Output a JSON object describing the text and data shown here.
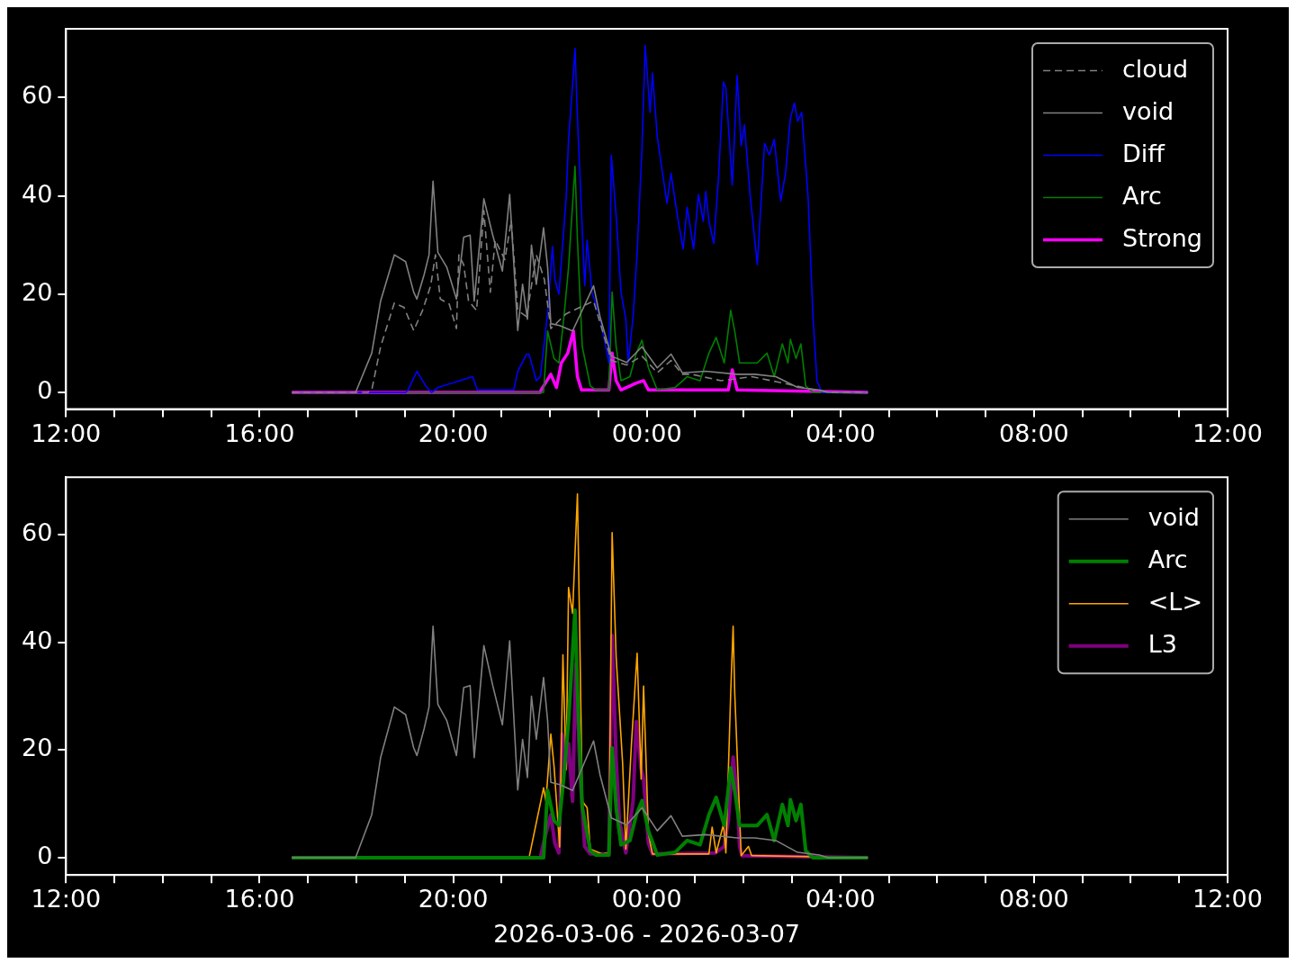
{
  "chart_data": [
    {
      "type": "line",
      "xlim": [
        "2026-03-06T12:00",
        "2026-03-07T12:00"
      ],
      "ylim": [
        -3.4,
        74
      ],
      "yticks": [
        0,
        20,
        40,
        60
      ],
      "legend": "top right",
      "xticks": [
        {
          "value": "2026-03-06T12:00",
          "label": "12:00"
        },
        {
          "value": "2026-03-06T13:00",
          "label": null
        },
        {
          "value": "2026-03-06T14:00",
          "label": null
        },
        {
          "value": "2026-03-06T15:00",
          "label": null
        },
        {
          "value": "2026-03-06T16:00",
          "label": "16:00"
        },
        {
          "value": "2026-03-06T17:00",
          "label": null
        },
        {
          "value": "2026-03-06T18:00",
          "label": null
        },
        {
          "value": "2026-03-06T19:00",
          "label": null
        },
        {
          "value": "2026-03-06T20:00",
          "label": "20:00"
        },
        {
          "value": "2026-03-06T21:00",
          "label": null
        },
        {
          "value": "2026-03-06T22:00",
          "label": null
        },
        {
          "value": "2026-03-06T23:00",
          "label": null
        },
        {
          "value": "2026-03-07T00:00",
          "label": "00:00"
        },
        {
          "value": "2026-03-07T01:00",
          "label": null
        },
        {
          "value": "2026-03-07T02:00",
          "label": null
        },
        {
          "value": "2026-03-07T03:00",
          "label": null
        },
        {
          "value": "2026-03-07T04:00",
          "label": "04:00"
        },
        {
          "value": "2026-03-07T05:00",
          "label": null
        },
        {
          "value": "2026-03-07T06:00",
          "label": null
        },
        {
          "value": "2026-03-07T07:00",
          "label": null
        },
        {
          "value": "2026-03-07T08:00",
          "label": "08:00"
        },
        {
          "value": "2026-03-07T09:00",
          "label": null
        },
        {
          "value": "2026-03-07T10:00",
          "label": null
        },
        {
          "value": "2026-03-07T11:00",
          "label": null
        },
        {
          "value": "2026-03-07T12:00",
          "label": "12:00"
        }
      ],
      "series": [
        {
          "name": "cloud",
          "color": "#808080",
          "line_style": "dashed",
          "x": [
            "2026-03-06T16:40",
            "2026-03-06T18:14",
            "2026-03-06T18:19",
            "2026-03-06T18:30",
            "2026-03-06T18:47",
            "2026-03-06T18:59",
            "2026-03-06T19:11",
            "2026-03-06T19:22",
            "2026-03-06T19:32",
            "2026-03-06T19:38",
            "2026-03-06T19:44",
            "2026-03-06T19:55",
            "2026-03-06T20:04",
            "2026-03-06T20:07",
            "2026-03-06T20:13",
            "2026-03-06T20:19",
            "2026-03-06T20:29",
            "2026-03-06T20:38",
            "2026-03-06T20:46",
            "2026-03-06T20:52",
            "2026-03-06T21:04",
            "2026-03-06T21:12",
            "2026-03-06T21:20",
            "2026-03-06T21:31",
            "2026-03-06T21:43",
            "2026-03-06T21:53",
            "2026-03-06T22:01",
            "2026-03-06T22:20",
            "2026-03-06T22:54",
            "2026-03-06T23:16",
            "2026-03-06T23:35",
            "2026-03-06T23:54",
            "2026-03-07T00:13",
            "2026-03-07T00:30",
            "2026-03-07T00:44",
            "2026-03-07T00:55",
            "2026-03-07T01:32",
            "2026-03-07T02:10",
            "2026-03-07T02:40",
            "2026-03-07T03:26",
            "2026-03-07T03:45",
            "2026-03-07T04:34"
          ],
          "values": [
            0,
            0,
            0.5,
            9.3,
            18.2,
            17.3,
            12.6,
            16.7,
            21.7,
            28,
            19,
            18,
            13,
            28,
            26,
            18.6,
            16.7,
            37,
            20.4,
            31,
            27,
            35,
            16.7,
            15.4,
            28,
            23,
            13,
            16,
            18.6,
            6.5,
            5.6,
            7.4,
            4,
            6.5,
            3.7,
            3.7,
            2.4,
            3.2,
            2.2,
            0.6,
            0,
            0
          ]
        },
        {
          "name": "void",
          "color": "#808080",
          "x": [
            "2026-03-06T16:40",
            "2026-03-06T17:59",
            "2026-03-06T18:19",
            "2026-03-06T18:30",
            "2026-03-06T18:47",
            "2026-03-06T19:01",
            "2026-03-06T19:11",
            "2026-03-06T19:15",
            "2026-03-06T19:24",
            "2026-03-06T19:30",
            "2026-03-06T19:35",
            "2026-03-06T19:41",
            "2026-03-06T19:52",
            "2026-03-06T20:04",
            "2026-03-06T20:13",
            "2026-03-06T20:21",
            "2026-03-06T20:26",
            "2026-03-06T20:38",
            "2026-03-06T20:49",
            "2026-03-06T21:01",
            "2026-03-06T21:10",
            "2026-03-06T21:20",
            "2026-03-06T21:26",
            "2026-03-06T21:32",
            "2026-03-06T21:37",
            "2026-03-06T21:43",
            "2026-03-06T21:52",
            "2026-03-06T21:57",
            "2026-03-06T22:01",
            "2026-03-06T22:12",
            "2026-03-06T22:28",
            "2026-03-06T22:54",
            "2026-03-06T23:02",
            "2026-03-06T23:16",
            "2026-03-06T23:35",
            "2026-03-06T23:54",
            "2026-03-07T00:13",
            "2026-03-07T00:30",
            "2026-03-07T00:44",
            "2026-03-07T01:13",
            "2026-03-07T01:52",
            "2026-03-07T02:14",
            "2026-03-07T02:40",
            "2026-03-07T03:07",
            "2026-03-07T03:34",
            "2026-03-07T03:45",
            "2026-03-07T04:34"
          ],
          "values": [
            0,
            0,
            8,
            18.6,
            28,
            26.6,
            20.4,
            19,
            24,
            28,
            43,
            28.5,
            25.5,
            19,
            31.6,
            32,
            18.6,
            39.4,
            32,
            24.7,
            40.3,
            12.6,
            22,
            14.9,
            30,
            22,
            33.5,
            25.5,
            14,
            13.6,
            12.5,
            21.7,
            15.4,
            7.4,
            6.1,
            9.3,
            5,
            7.8,
            4,
            4.3,
            3.7,
            3.7,
            3.2,
            1,
            0.5,
            0,
            0
          ]
        },
        {
          "name": "Diff",
          "color": "#0000ff",
          "x": [
            "2026-03-06T16:40",
            "2026-03-06T19:01",
            "2026-03-06T19:04",
            "2026-03-06T19:15",
            "2026-03-06T19:26",
            "2026-03-06T19:33",
            "2026-03-06T19:41",
            "2026-03-06T20:24",
            "2026-03-06T20:30",
            "2026-03-06T21:15",
            "2026-03-06T21:20",
            "2026-03-06T21:31",
            "2026-03-06T21:34",
            "2026-03-06T21:43",
            "2026-03-06T21:48",
            "2026-03-06T21:57",
            "2026-03-06T22:03",
            "2026-03-06T22:06",
            "2026-03-06T22:11",
            "2026-03-06T22:20",
            "2026-03-06T22:23",
            "2026-03-06T22:28",
            "2026-03-06T22:31",
            "2026-03-06T22:34",
            "2026-03-06T22:37",
            "2026-03-06T22:43",
            "2026-03-06T22:46",
            "2026-03-06T22:52",
            "2026-03-06T23:02",
            "2026-03-06T23:13",
            "2026-03-06T23:16",
            "2026-03-06T23:22",
            "2026-03-06T23:28",
            "2026-03-06T23:34",
            "2026-03-06T23:37",
            "2026-03-06T23:43",
            "2026-03-06T23:48",
            "2026-03-06T23:54",
            "2026-03-06T23:58",
            "2026-03-07T00:04",
            "2026-03-07T00:07",
            "2026-03-07T00:13",
            "2026-03-07T00:19",
            "2026-03-07T00:25",
            "2026-03-07T00:30",
            "2026-03-07T00:38",
            "2026-03-07T00:45",
            "2026-03-07T00:50",
            "2026-03-07T00:58",
            "2026-03-07T01:04",
            "2026-03-07T01:10",
            "2026-03-07T01:13",
            "2026-03-07T01:17",
            "2026-03-07T01:23",
            "2026-03-07T01:29",
            "2026-03-07T01:35",
            "2026-03-07T01:38",
            "2026-03-07T01:46",
            "2026-03-07T01:52",
            "2026-03-07T01:57",
            "2026-03-07T02:01",
            "2026-03-07T02:08",
            "2026-03-07T02:17",
            "2026-03-07T02:26",
            "2026-03-07T02:32",
            "2026-03-07T02:38",
            "2026-03-07T02:46",
            "2026-03-07T02:52",
            "2026-03-07T02:58",
            "2026-03-07T03:03",
            "2026-03-07T03:07",
            "2026-03-07T03:12",
            "2026-03-07T03:20",
            "2026-03-07T03:26",
            "2026-03-07T03:31",
            "2026-03-07T03:37",
            "2026-03-07T04:34"
          ],
          "values": [
            0,
            0,
            0.5,
            4.3,
            1.3,
            0,
            1,
            3.2,
            0.5,
            0.5,
            4.3,
            7.8,
            7.8,
            2.4,
            3.2,
            16,
            29.7,
            23,
            20,
            39.6,
            51.5,
            62.6,
            70,
            55.8,
            44.6,
            21.7,
            31,
            20.4,
            15.4,
            6,
            48.3,
            35.9,
            20.4,
            14.9,
            6,
            15.4,
            28.4,
            49.6,
            70.6,
            57,
            65,
            52,
            45.2,
            38.5,
            44.6,
            35.9,
            29.2,
            37.7,
            29.2,
            40.3,
            34.8,
            40.9,
            34.8,
            30.3,
            44,
            63.2,
            61.9,
            42.2,
            64.5,
            50.2,
            54.5,
            40.3,
            26,
            50.7,
            48.3,
            51.5,
            39,
            44.6,
            55.8,
            58.9,
            55.2,
            57,
            39.6,
            15.4,
            2.4,
            0,
            0
          ]
        },
        {
          "name": "Arc",
          "color": "#008000",
          "x": [
            "2026-03-06T16:40",
            "2026-03-06T21:52",
            "2026-03-06T21:57",
            "2026-03-06T22:05",
            "2026-03-06T22:11",
            "2026-03-06T22:17",
            "2026-03-06T22:23",
            "2026-03-06T22:31",
            "2026-03-06T22:34",
            "2026-03-06T22:40",
            "2026-03-06T22:50",
            "2026-03-06T22:57",
            "2026-03-06T23:13",
            "2026-03-06T23:17",
            "2026-03-06T23:22",
            "2026-03-06T23:28",
            "2026-03-06T23:39",
            "2026-03-06T23:47",
            "2026-03-06T23:54",
            "2026-03-07T00:02",
            "2026-03-07T00:13",
            "2026-03-07T00:35",
            "2026-03-07T00:50",
            "2026-03-07T01:06",
            "2026-03-07T01:17",
            "2026-03-07T01:26",
            "2026-03-07T01:36",
            "2026-03-07T01:44",
            "2026-03-07T01:49",
            "2026-03-07T01:55",
            "2026-03-07T02:06",
            "2026-03-07T02:17",
            "2026-03-07T02:29",
            "2026-03-07T02:38",
            "2026-03-07T02:48",
            "2026-03-07T02:55",
            "2026-03-07T02:58",
            "2026-03-07T03:05",
            "2026-03-07T03:11",
            "2026-03-07T03:17",
            "2026-03-07T03:26",
            "2026-03-07T04:34"
          ],
          "values": [
            0,
            0,
            12.5,
            6.9,
            6,
            14.9,
            25.5,
            46,
            31,
            9.3,
            1.3,
            0.5,
            0.5,
            20.4,
            9.3,
            2.4,
            3.2,
            8,
            10.6,
            5,
            0.5,
            1,
            3.2,
            2.4,
            8,
            11.2,
            6,
            16.7,
            12.5,
            6,
            6,
            6,
            8,
            3.2,
            9.9,
            6,
            10.8,
            6.9,
            9.9,
            1.3,
            0,
            0
          ]
        },
        {
          "name": "Strong",
          "color": "#ff00ff",
          "x": [
            "2026-03-06T16:40",
            "2026-03-06T21:48",
            "2026-03-06T21:49",
            "2026-03-06T22:01",
            "2026-03-06T22:08",
            "2026-03-06T22:14",
            "2026-03-06T22:22",
            "2026-03-06T22:29",
            "2026-03-06T22:34",
            "2026-03-06T22:39",
            "2026-03-06T23:13",
            "2026-03-06T23:17",
            "2026-03-06T23:22",
            "2026-03-06T23:28",
            "2026-03-06T23:47",
            "2026-03-06T23:56",
            "2026-03-07T00:02",
            "2026-03-07T01:41",
            "2026-03-07T01:46",
            "2026-03-07T01:52",
            "2026-03-07T04:34"
          ],
          "values": [
            0,
            0,
            0.5,
            3.7,
            1,
            6,
            8,
            12.5,
            3.2,
            0.5,
            0.5,
            8,
            2.4,
            0.5,
            1.9,
            2.4,
            0.5,
            0.5,
            4.6,
            0.5,
            0
          ]
        }
      ]
    },
    {
      "type": "line",
      "xlim": [
        "2026-03-06T12:00",
        "2026-03-07T12:00"
      ],
      "ylim": [
        -3.2,
        70.7
      ],
      "yticks": [
        0,
        20,
        40,
        60
      ],
      "legend": "top right",
      "xlabel": "2026-03-06 - 2026-03-07",
      "xticks": [
        {
          "value": "2026-03-06T12:00",
          "label": "12:00"
        },
        {
          "value": "2026-03-06T13:00",
          "label": null
        },
        {
          "value": "2026-03-06T14:00",
          "label": null
        },
        {
          "value": "2026-03-06T15:00",
          "label": null
        },
        {
          "value": "2026-03-06T16:00",
          "label": "16:00"
        },
        {
          "value": "2026-03-06T17:00",
          "label": null
        },
        {
          "value": "2026-03-06T18:00",
          "label": null
        },
        {
          "value": "2026-03-06T19:00",
          "label": null
        },
        {
          "value": "2026-03-06T20:00",
          "label": "20:00"
        },
        {
          "value": "2026-03-06T21:00",
          "label": null
        },
        {
          "value": "2026-03-06T22:00",
          "label": null
        },
        {
          "value": "2026-03-06T23:00",
          "label": null
        },
        {
          "value": "2026-03-07T00:00",
          "label": "00:00"
        },
        {
          "value": "2026-03-07T01:00",
          "label": null
        },
        {
          "value": "2026-03-07T02:00",
          "label": null
        },
        {
          "value": "2026-03-07T03:00",
          "label": null
        },
        {
          "value": "2026-03-07T04:00",
          "label": "04:00"
        },
        {
          "value": "2026-03-07T05:00",
          "label": null
        },
        {
          "value": "2026-03-07T06:00",
          "label": null
        },
        {
          "value": "2026-03-07T07:00",
          "label": null
        },
        {
          "value": "2026-03-07T08:00",
          "label": "08:00"
        },
        {
          "value": "2026-03-07T09:00",
          "label": null
        },
        {
          "value": "2026-03-07T10:00",
          "label": null
        },
        {
          "value": "2026-03-07T11:00",
          "label": null
        },
        {
          "value": "2026-03-07T12:00",
          "label": "12:00"
        }
      ],
      "series": [
        {
          "name": "void",
          "color": "#808080",
          "x": [
            "2026-03-06T16:40",
            "2026-03-06T17:59",
            "2026-03-06T18:19",
            "2026-03-06T18:30",
            "2026-03-06T18:47",
            "2026-03-06T19:01",
            "2026-03-06T19:11",
            "2026-03-06T19:15",
            "2026-03-06T19:24",
            "2026-03-06T19:30",
            "2026-03-06T19:35",
            "2026-03-06T19:41",
            "2026-03-06T19:52",
            "2026-03-06T20:04",
            "2026-03-06T20:13",
            "2026-03-06T20:21",
            "2026-03-06T20:26",
            "2026-03-06T20:38",
            "2026-03-06T20:49",
            "2026-03-06T21:01",
            "2026-03-06T21:10",
            "2026-03-06T21:20",
            "2026-03-06T21:26",
            "2026-03-06T21:32",
            "2026-03-06T21:37",
            "2026-03-06T21:43",
            "2026-03-06T21:52",
            "2026-03-06T21:57",
            "2026-03-06T22:01",
            "2026-03-06T22:12",
            "2026-03-06T22:28",
            "2026-03-06T22:54",
            "2026-03-06T23:02",
            "2026-03-06T23:16",
            "2026-03-06T23:35",
            "2026-03-06T23:54",
            "2026-03-07T00:13",
            "2026-03-07T00:30",
            "2026-03-07T00:44",
            "2026-03-07T01:13",
            "2026-03-07T01:52",
            "2026-03-07T02:14",
            "2026-03-07T02:40",
            "2026-03-07T03:07",
            "2026-03-07T03:34",
            "2026-03-07T03:45",
            "2026-03-07T04:34"
          ],
          "values": [
            0,
            0,
            8,
            18.6,
            28,
            26.6,
            20.4,
            19,
            24,
            28,
            43,
            28.5,
            25.5,
            19,
            31.6,
            32,
            18.6,
            39.4,
            32,
            24.7,
            40.3,
            12.6,
            22,
            14.9,
            30,
            22,
            33.5,
            25.5,
            14,
            13.6,
            12.5,
            21.7,
            15.4,
            7.4,
            6.1,
            9.3,
            5,
            7.8,
            4,
            4.3,
            3.7,
            3.7,
            3.2,
            1,
            0.5,
            0,
            0
          ]
        },
        {
          "name": "Arc",
          "color": "#008000",
          "x": [
            "2026-03-06T16:40",
            "2026-03-06T21:52",
            "2026-03-06T21:57",
            "2026-03-06T22:05",
            "2026-03-06T22:11",
            "2026-03-06T22:17",
            "2026-03-06T22:23",
            "2026-03-06T22:31",
            "2026-03-06T22:34",
            "2026-03-06T22:40",
            "2026-03-06T22:50",
            "2026-03-06T22:57",
            "2026-03-06T23:13",
            "2026-03-06T23:17",
            "2026-03-06T23:22",
            "2026-03-06T23:28",
            "2026-03-06T23:39",
            "2026-03-06T23:47",
            "2026-03-06T23:54",
            "2026-03-07T00:02",
            "2026-03-07T00:13",
            "2026-03-07T00:35",
            "2026-03-07T00:50",
            "2026-03-07T01:06",
            "2026-03-07T01:17",
            "2026-03-07T01:26",
            "2026-03-07T01:36",
            "2026-03-07T01:44",
            "2026-03-07T01:49",
            "2026-03-07T01:55",
            "2026-03-07T02:06",
            "2026-03-07T02:17",
            "2026-03-07T02:29",
            "2026-03-07T02:38",
            "2026-03-07T02:48",
            "2026-03-07T02:55",
            "2026-03-07T02:58",
            "2026-03-07T03:05",
            "2026-03-07T03:11",
            "2026-03-07T03:17",
            "2026-03-07T03:26",
            "2026-03-07T04:34"
          ],
          "values": [
            0,
            0,
            12.5,
            6.9,
            6,
            14.9,
            25.5,
            46,
            31,
            9.3,
            1.3,
            0.5,
            0.5,
            20.4,
            9.3,
            2.4,
            3.2,
            8,
            10.6,
            5,
            0.5,
            1,
            3.2,
            2.4,
            8,
            11.2,
            6,
            16.7,
            12.5,
            6,
            6,
            6,
            8,
            3.2,
            9.9,
            6,
            10.8,
            6.9,
            9.9,
            1.3,
            0,
            0
          ]
        },
        {
          "name": "<L>",
          "color": "#ffa500",
          "x": [
            "2026-03-06T16:40",
            "2026-03-06T21:34",
            "2026-03-06T21:52",
            "2026-03-06T21:55",
            "2026-03-06T22:01",
            "2026-03-06T22:05",
            "2026-03-06T22:08",
            "2026-03-06T22:12",
            "2026-03-06T22:16",
            "2026-03-06T22:20",
            "2026-03-06T22:23",
            "2026-03-06T22:28",
            "2026-03-06T22:34",
            "2026-03-06T22:37",
            "2026-03-06T22:40",
            "2026-03-06T22:46",
            "2026-03-06T22:50",
            "2026-03-06T23:05",
            "2026-03-06T23:13",
            "2026-03-06T23:17",
            "2026-03-06T23:22",
            "2026-03-06T23:25",
            "2026-03-06T23:30",
            "2026-03-06T23:34",
            "2026-03-06T23:41",
            "2026-03-06T23:48",
            "2026-03-06T23:53",
            "2026-03-06T23:56",
            "2026-03-07T00:02",
            "2026-03-07T00:07",
            "2026-03-07T01:17",
            "2026-03-07T01:21",
            "2026-03-07T01:26",
            "2026-03-07T01:35",
            "2026-03-07T01:38",
            "2026-03-07T01:44",
            "2026-03-07T01:47",
            "2026-03-07T01:49",
            "2026-03-07T01:53",
            "2026-03-07T01:57",
            "2026-03-07T02:06",
            "2026-03-07T02:10",
            "2026-03-07T04:34"
          ],
          "values": [
            0,
            0,
            13,
            10.5,
            23,
            17,
            10.5,
            2,
            37.7,
            16.4,
            50.2,
            45.4,
            67.6,
            40,
            10.5,
            9.3,
            1.6,
            0.7,
            0.9,
            60.4,
            37.2,
            null,
            17.6,
            1.6,
            21.2,
            38,
            14.6,
            31.9,
            4.5,
            0.7,
            0.7,
            5.7,
            0.9,
            6.2,
            0.9,
            30.6,
            43,
            30.6,
            null,
            0.4,
            2.1,
            0.4,
            0
          ]
        },
        {
          "name": "L3",
          "color": "#800080",
          "x": [
            "2026-03-06T16:40",
            "2026-03-06T21:48",
            "2026-03-06T21:53",
            "2026-03-06T22:01",
            "2026-03-06T22:06",
            "2026-03-06T22:11",
            "2026-03-06T22:15",
            "2026-03-06T22:19",
            "2026-03-06T22:23",
            "2026-03-06T22:28",
            "2026-03-06T22:32",
            "2026-03-06T22:37",
            "2026-03-06T22:43",
            "2026-03-06T22:50",
            "2026-03-06T23:13",
            "2026-03-06T23:17",
            "2026-03-06T23:22",
            "2026-03-06T23:26",
            "2026-03-06T23:34",
            "2026-03-06T23:43",
            "2026-03-06T23:47",
            "2026-03-06T23:53",
            "2026-03-06T23:56",
            "2026-03-07T00:02",
            "2026-03-07T00:07",
            "2026-03-07T01:25",
            "2026-03-07T01:36",
            "2026-03-07T01:41",
            "2026-03-07T01:47",
            "2026-03-07T01:52",
            "2026-03-07T01:55",
            "2026-03-07T01:58",
            "2026-03-07T04:34"
          ],
          "values": [
            0,
            0,
            3.4,
            8,
            2.7,
            0.9,
            23,
            16.4,
            21.2,
            10.5,
            36,
            16.4,
            2.1,
            0.7,
            0.7,
            41.3,
            18.2,
            6.9,
            0.9,
            10.5,
            25.3,
            16.4,
            14.6,
            2.7,
            0.7,
            0.9,
            2.1,
            6.9,
            18.7,
            11.6,
            2.1,
            0.4,
            0
          ]
        }
      ]
    }
  ]
}
